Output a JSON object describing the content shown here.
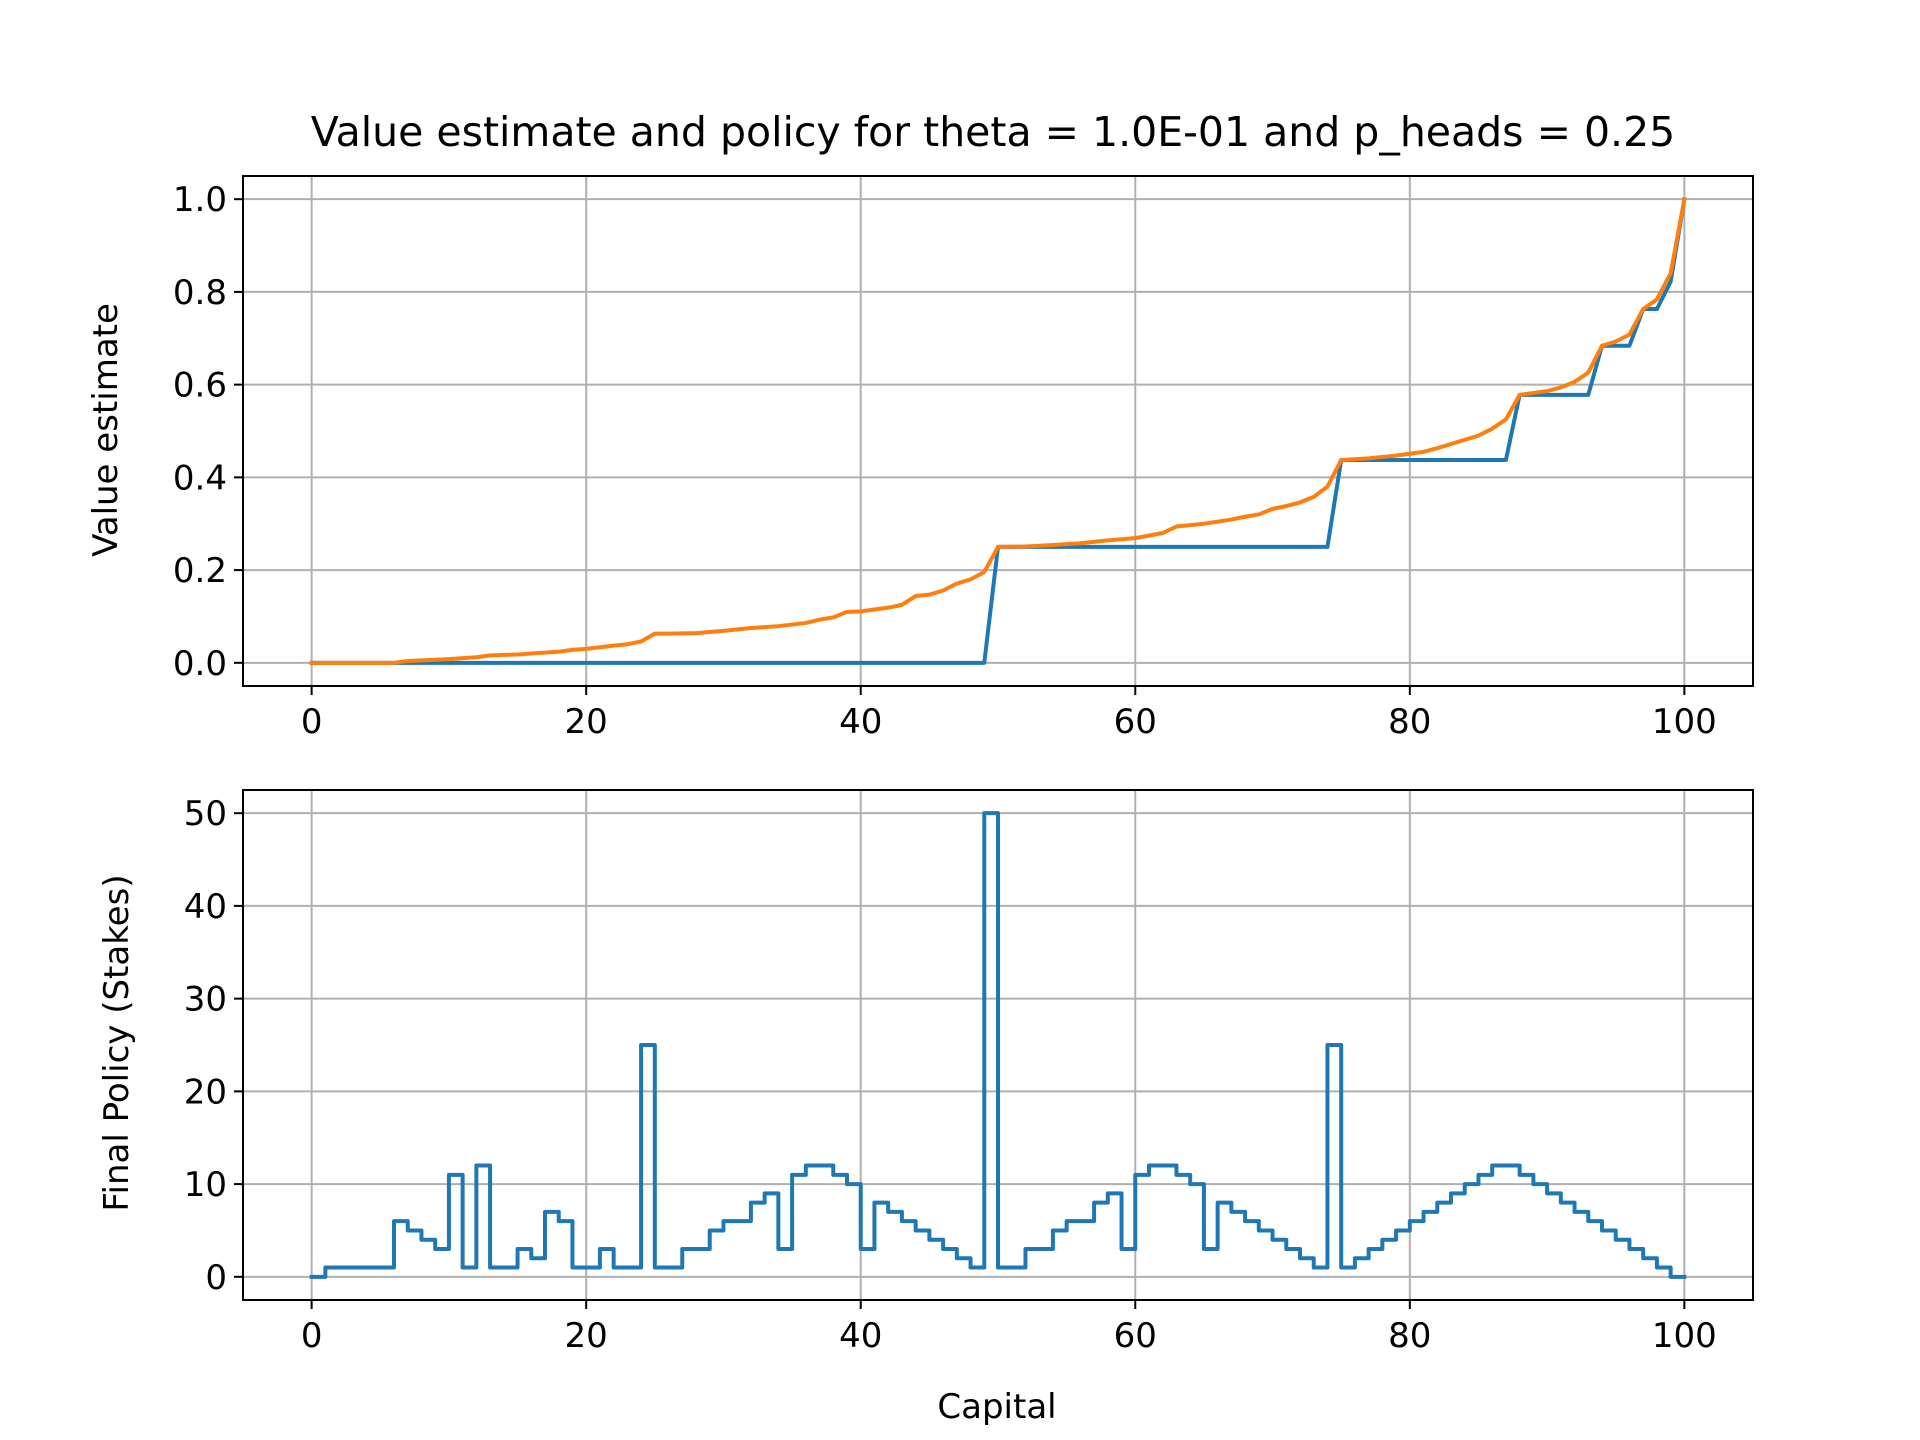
{
  "chart_data": [
    {
      "type": "line",
      "title": "Value estimate and policy for theta = 1.0E-01 and p_heads = 0.25",
      "xlabel": "",
      "ylabel": "Value estimate",
      "xlim": [
        -5,
        105
      ],
      "ylim": [
        -0.05,
        1.05
      ],
      "xticks": [
        "0",
        "20",
        "40",
        "60",
        "80",
        "100"
      ],
      "yticks": [
        "0.0",
        "0.2",
        "0.4",
        "0.6",
        "0.8",
        "1.0"
      ],
      "grid": true,
      "colors": [
        "#1f77b4",
        "#ff7f0e"
      ],
      "series": [
        {
          "x": [
            0,
            49,
            50,
            74,
            75,
            87,
            88,
            93,
            94,
            96,
            97,
            98,
            99,
            100
          ],
          "y": [
            0,
            0,
            0.25,
            0.25,
            0.4375,
            0.4375,
            0.578,
            0.578,
            0.684,
            0.684,
            0.763,
            0.763,
            0.822,
            1.0
          ]
        },
        {
          "x": [
            0,
            6,
            7,
            10,
            12,
            13,
            15,
            16,
            18,
            19,
            20,
            22,
            23,
            24,
            25,
            26,
            28,
            30,
            32,
            34,
            36,
            37,
            38,
            39,
            40,
            42,
            43,
            44,
            45,
            46,
            47,
            48,
            49,
            50,
            52,
            54,
            56,
            58,
            60,
            62,
            63,
            65,
            67,
            68,
            69,
            70,
            71,
            72,
            73,
            74,
            75,
            77,
            79,
            81,
            82,
            83,
            84,
            85,
            86,
            87,
            88,
            90,
            91,
            92,
            93,
            94,
            95,
            96,
            97,
            98,
            99,
            100
          ],
          "y": [
            0,
            0,
            0.004,
            0.008,
            0.012,
            0.016,
            0.018,
            0.02,
            0.024,
            0.028,
            0.03,
            0.037,
            0.04,
            0.046,
            0.063,
            0.063,
            0.064,
            0.069,
            0.075,
            0.079,
            0.086,
            0.093,
            0.098,
            0.11,
            0.111,
            0.119,
            0.125,
            0.144,
            0.147,
            0.156,
            0.171,
            0.18,
            0.196,
            0.25,
            0.251,
            0.254,
            0.258,
            0.264,
            0.269,
            0.28,
            0.294,
            0.3,
            0.309,
            0.315,
            0.32,
            0.332,
            0.338,
            0.346,
            0.358,
            0.38,
            0.4375,
            0.441,
            0.447,
            0.455,
            0.463,
            0.472,
            0.481,
            0.49,
            0.505,
            0.525,
            0.578,
            0.586,
            0.594,
            0.606,
            0.626,
            0.684,
            0.693,
            0.708,
            0.763,
            0.784,
            0.84,
            1.0
          ]
        }
      ]
    },
    {
      "type": "line",
      "title": "",
      "xlabel": "Capital",
      "ylabel": "Final Policy (Stakes)",
      "xlim": [
        -5,
        105
      ],
      "ylim": [
        -2.5,
        52.5
      ],
      "xticks": [
        "0",
        "20",
        "40",
        "60",
        "80",
        "100"
      ],
      "yticks": [
        "0",
        "10",
        "20",
        "30",
        "40",
        "50"
      ],
      "grid": true,
      "step": "post",
      "colors": [
        "#1f77b4"
      ],
      "series": [
        {
          "x": [
            0,
            1,
            2,
            3,
            4,
            5,
            6,
            7,
            8,
            9,
            10,
            11,
            12,
            13,
            14,
            15,
            16,
            17,
            18,
            19,
            20,
            21,
            22,
            23,
            24,
            25,
            26,
            27,
            28,
            29,
            30,
            31,
            32,
            33,
            34,
            35,
            36,
            37,
            38,
            39,
            40,
            41,
            42,
            43,
            44,
            45,
            46,
            47,
            48,
            49,
            50,
            51,
            52,
            53,
            54,
            55,
            56,
            57,
            58,
            59,
            60,
            61,
            62,
            63,
            64,
            65,
            66,
            67,
            68,
            69,
            70,
            71,
            72,
            73,
            74,
            75,
            76,
            77,
            78,
            79,
            80,
            81,
            82,
            83,
            84,
            85,
            86,
            87,
            88,
            89,
            90,
            91,
            92,
            93,
            94,
            95,
            96,
            97,
            98,
            99,
            100
          ],
          "y": [
            0,
            1,
            1,
            1,
            1,
            1,
            6,
            5,
            4,
            3,
            11,
            1,
            12,
            1,
            1,
            3,
            2,
            7,
            6,
            1,
            1,
            3,
            1,
            1,
            25,
            1,
            1,
            3,
            3,
            5,
            6,
            6,
            8,
            9,
            3,
            11,
            12,
            12,
            11,
            10,
            3,
            8,
            7,
            6,
            5,
            4,
            3,
            2,
            1,
            50,
            1,
            1,
            3,
            3,
            5,
            6,
            6,
            8,
            9,
            3,
            11,
            12,
            12,
            11,
            10,
            3,
            8,
            7,
            6,
            5,
            4,
            3,
            2,
            1,
            25,
            1,
            2,
            3,
            4,
            5,
            6,
            7,
            8,
            9,
            10,
            11,
            12,
            12,
            11,
            10,
            9,
            8,
            7,
            6,
            5,
            4,
            3,
            2,
            1,
            0,
            0
          ]
        }
      ]
    }
  ]
}
